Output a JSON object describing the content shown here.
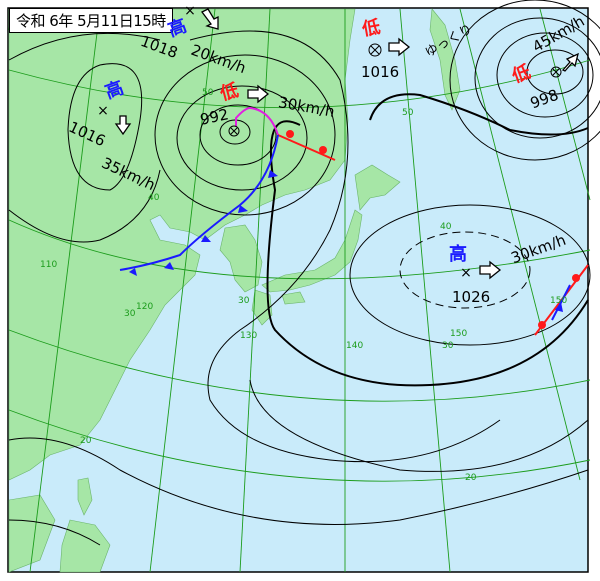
{
  "title": "令和 6年 5月11日15時",
  "colors": {
    "sea": "#c9ebfa",
    "land": "#a6e6a6",
    "grid": "#1c9c1c",
    "high": "#1a1aff",
    "low": "#ff1a1a",
    "cold_front": "#1a1aff",
    "warm_front": "#ff1a1a",
    "occluded_front": "#e020e0"
  },
  "systems": [
    {
      "type": "high",
      "symbol": "高",
      "pressure": "1018",
      "motion": "20km/h",
      "motion_icon": "arrow-down-right-icon"
    },
    {
      "type": "high",
      "symbol": "高",
      "pressure": "1016",
      "motion": "35km/h",
      "motion_icon": "arrow-down-icon"
    },
    {
      "type": "low",
      "symbol": "低",
      "pressure": "992",
      "motion": "30km/h",
      "motion_icon": "arrow-right-icon"
    },
    {
      "type": "low",
      "symbol": "低",
      "pressure": "1016",
      "motion": "ゆっくり",
      "motion_icon": "arrow-right-icon"
    },
    {
      "type": "low",
      "symbol": "低",
      "pressure": "998",
      "motion": "45km/h",
      "motion_icon": "arrow-up-right-icon"
    },
    {
      "type": "high",
      "symbol": "高",
      "pressure": "1026",
      "motion": "30km/h",
      "motion_icon": "arrow-right-icon"
    }
  ],
  "grid_labels": [
    "50",
    "50",
    "40",
    "40",
    "30",
    "30",
    "30",
    "20",
    "20",
    "110",
    "120",
    "130",
    "140",
    "150",
    "150"
  ]
}
